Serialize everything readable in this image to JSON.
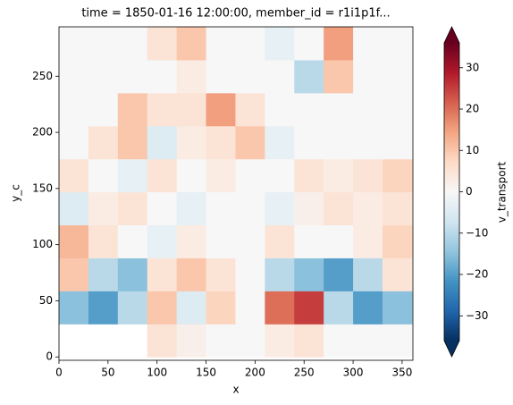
{
  "chart_data": {
    "type": "heatmap",
    "title": "time = 1850-01-16 12:00:00, member_id = r1i1p1f...",
    "x_label": "x",
    "y_label": "y_c",
    "colorbar_label": "v_transport",
    "colormap": "RdBu_r",
    "x_edges": [
      0,
      30,
      60,
      90,
      120,
      150,
      180,
      210,
      240,
      270,
      300,
      330,
      360
    ],
    "y_edges": [
      0,
      29.4,
      58.8,
      88.2,
      117.6,
      147,
      176.4,
      205.8,
      235.2,
      264.6,
      294
    ],
    "z": [
      [
        null,
        null,
        null,
        5,
        2,
        0,
        0,
        3,
        5,
        0,
        0,
        0
      ],
      [
        -15,
        -20,
        -10,
        10,
        -5,
        8,
        0,
        20,
        25,
        -10,
        -20,
        -15
      ],
      [
        10,
        -10,
        -15,
        5,
        10,
        5,
        0,
        -10,
        -15,
        -20,
        -10,
        5
      ],
      [
        12,
        5,
        0,
        -3,
        3,
        0,
        0,
        5,
        0,
        0,
        3,
        8
      ],
      [
        -5,
        3,
        5,
        0,
        -3,
        0,
        0,
        -3,
        2,
        5,
        3,
        5
      ],
      [
        5,
        0,
        -3,
        5,
        0,
        3,
        0,
        0,
        5,
        3,
        5,
        8
      ],
      [
        0,
        5,
        10,
        -5,
        3,
        5,
        10,
        -3,
        0,
        0,
        0,
        0
      ],
      [
        0,
        0,
        10,
        5,
        5,
        15,
        5,
        0,
        0,
        0,
        0,
        0
      ],
      [
        0,
        0,
        0,
        0,
        3,
        0,
        0,
        0,
        -10,
        10,
        0,
        0
      ],
      [
        0,
        0,
        0,
        5,
        10,
        0,
        0,
        -3,
        0,
        15,
        0,
        0
      ]
    ],
    "xlim": [
      0,
      361
    ],
    "ylim": [
      -3,
      294
    ],
    "xticks": [
      0,
      50,
      100,
      150,
      200,
      250,
      300,
      350
    ],
    "yticks": [
      0,
      50,
      100,
      150,
      200,
      250
    ],
    "clim": [
      -36,
      36
    ],
    "cticks": [
      {
        "value": -30,
        "label": "−30"
      },
      {
        "value": -20,
        "label": "−20"
      },
      {
        "value": -10,
        "label": "−10"
      },
      0,
      10,
      20,
      30
    ]
  }
}
